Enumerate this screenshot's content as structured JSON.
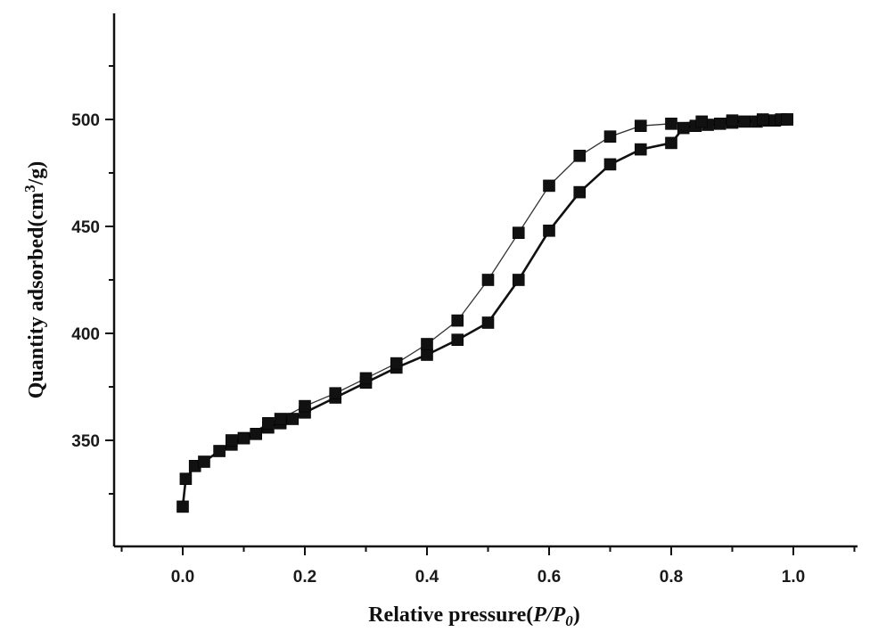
{
  "chart_data": {
    "type": "line",
    "xlabel_main": "Relative pressure(",
    "xlabel_ital": "P/P",
    "xlabel_sub": "0",
    "xlabel_end": ")",
    "ylabel_main": "Quantity adsorbed(cm",
    "ylabel_sup": "3",
    "ylabel_end": "/g)",
    "xlim": [
      -0.1,
      1.1
    ],
    "ylim": [
      300,
      550
    ],
    "xticks": [
      "0.0",
      "0.2",
      "0.4",
      "0.6",
      "0.8",
      "1.0"
    ],
    "yticks": [
      "350",
      "400",
      "450",
      "500"
    ],
    "grid": false,
    "legend": "none",
    "series": [
      {
        "values_x": [
          0.0,
          0.005,
          0.02,
          0.035,
          0.06,
          0.08,
          0.1,
          0.12,
          0.14,
          0.16,
          0.18,
          0.2,
          0.25,
          0.3,
          0.35,
          0.4,
          0.45,
          0.5,
          0.55,
          0.6,
          0.65,
          0.7,
          0.75,
          0.8,
          0.82,
          0.84,
          0.86,
          0.88,
          0.9,
          0.92,
          0.94,
          0.96,
          0.97,
          0.98,
          0.99
        ],
        "values_y": [
          319,
          332,
          338,
          340,
          345,
          348,
          351,
          353,
          356,
          358,
          360,
          363,
          370,
          377,
          384,
          390,
          397,
          405,
          425,
          448,
          466,
          479,
          486,
          489,
          496,
          497,
          497.5,
          498,
          498.5,
          499,
          499,
          499.5,
          499.5,
          500,
          500
        ]
      },
      {
        "values_x": [
          0.08,
          0.1,
          0.14,
          0.16,
          0.2,
          0.25,
          0.3,
          0.35,
          0.4,
          0.45,
          0.5,
          0.55,
          0.6,
          0.65,
          0.7,
          0.75,
          0.8,
          0.85,
          0.9,
          0.95,
          0.99
        ],
        "values_y": [
          350,
          351,
          358,
          360,
          366,
          372,
          379,
          386,
          395,
          406,
          425,
          447,
          469,
          483,
          492,
          497,
          498,
          499,
          499.5,
          500,
          500
        ]
      }
    ]
  }
}
